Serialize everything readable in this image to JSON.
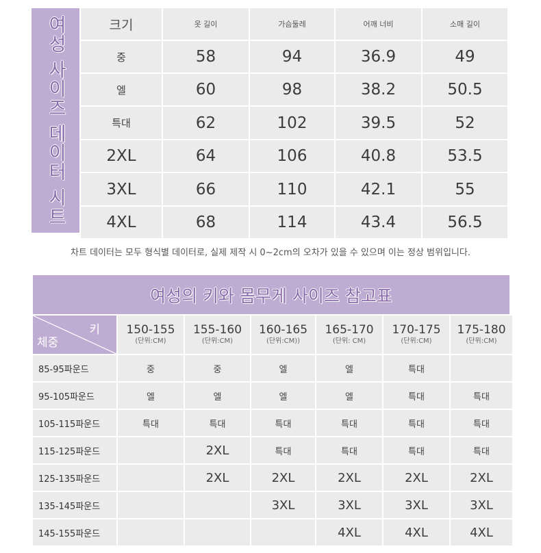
{
  "women_size_chart": {
    "side_title": "여성 사이즈 데이터 시트",
    "header": [
      "크기",
      "옷 길이",
      "가슴둘레",
      "어깨 너비",
      "소매 길이"
    ],
    "rows": [
      [
        "중",
        "58",
        "94",
        "36.9",
        "49"
      ],
      [
        "엘",
        "60",
        "98",
        "38.2",
        "50.5"
      ],
      [
        "특대",
        "62",
        "102",
        "39.5",
        "52"
      ],
      [
        "2XL",
        "64",
        "106",
        "40.8",
        "53.5"
      ],
      [
        "3XL",
        "66",
        "110",
        "42.1",
        "55"
      ],
      [
        "4XL",
        "68",
        "114",
        "43.4",
        "56.5"
      ]
    ]
  },
  "note": "차트 데이터는 모두 형식별 데이터로, 실제 제작 시 0~2cm의 오차가 있을 수 있으며 이는 정상 범위입니다.",
  "height_weight_chart": {
    "title": "여성의 키와 몸무게 사이즈 참고표",
    "corner_height_label": "키",
    "corner_weight_label": "체중",
    "columns": [
      {
        "range": "150-155",
        "unit": "(단위:CM)"
      },
      {
        "range": "155-160",
        "unit": "(단위:CM)"
      },
      {
        "range": "160-165",
        "unit": "(단위:CM))"
      },
      {
        "range": "165-170",
        "unit": "(단위: CM)"
      },
      {
        "range": "170-175",
        "unit": "(단위:CM)"
      },
      {
        "range": "175-180",
        "unit": "(단위:CM)"
      }
    ],
    "rows": [
      {
        "label": "85-95파운드",
        "cells": [
          "중",
          "중",
          "엘",
          "엘",
          "특대",
          ""
        ]
      },
      {
        "label": "95-105파운드",
        "cells": [
          "엘",
          "엘",
          "엘",
          "엘",
          "특대",
          "특대"
        ]
      },
      {
        "label": "105-115파운드",
        "cells": [
          "특대",
          "특대",
          "특대",
          "특대",
          "특대",
          "특대"
        ]
      },
      {
        "label": "115-125파운드",
        "cells": [
          "",
          "2XL",
          "특대",
          "특대",
          "특대",
          "특대"
        ]
      },
      {
        "label": "125-135파운드",
        "cells": [
          "",
          "2XL",
          "2XL",
          "2XL",
          "2XL",
          "2XL"
        ]
      },
      {
        "label": "135-145파운드",
        "cells": [
          "",
          "",
          "3XL",
          "3XL",
          "3XL",
          "3XL"
        ]
      },
      {
        "label": "145-155파운드",
        "cells": [
          "",
          "",
          "",
          "4XL",
          "4XL",
          "4XL"
        ]
      }
    ]
  }
}
